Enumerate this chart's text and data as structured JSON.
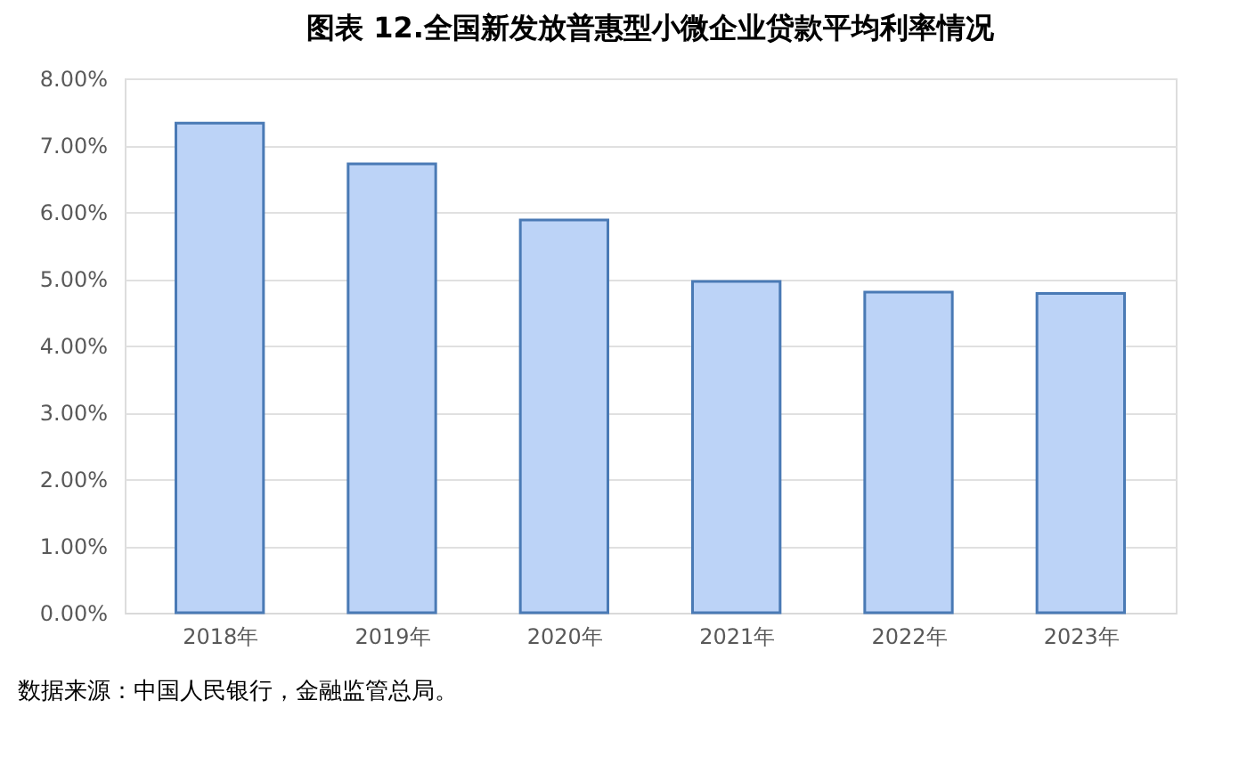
{
  "chart_data": {
    "type": "bar",
    "title": "图表 12.全国新发放普惠型小微企业贷款平均利率情况",
    "categories": [
      "2018年",
      "2019年",
      "2020年",
      "2021年",
      "2022年",
      "2023年"
    ],
    "values": [
      7.33,
      6.72,
      5.88,
      4.96,
      4.8,
      4.78
    ],
    "color": "#bcd3f7",
    "ylim": [
      0,
      8
    ],
    "yticks": [
      {
        "value": 0,
        "label": "0.00%"
      },
      {
        "value": 1,
        "label": "1.00%"
      },
      {
        "value": 2,
        "label": "2.00%"
      },
      {
        "value": 3,
        "label": "3.00%"
      },
      {
        "value": 4,
        "label": "4.00%"
      },
      {
        "value": 5,
        "label": "5.00%"
      },
      {
        "value": 6,
        "label": "6.00%"
      },
      {
        "value": 7,
        "label": "7.00%"
      },
      {
        "value": 8,
        "label": "8.00%"
      }
    ],
    "grid": "y",
    "annotations": [
      "数据来源：中国人民银行，金融监管总局。"
    ]
  }
}
